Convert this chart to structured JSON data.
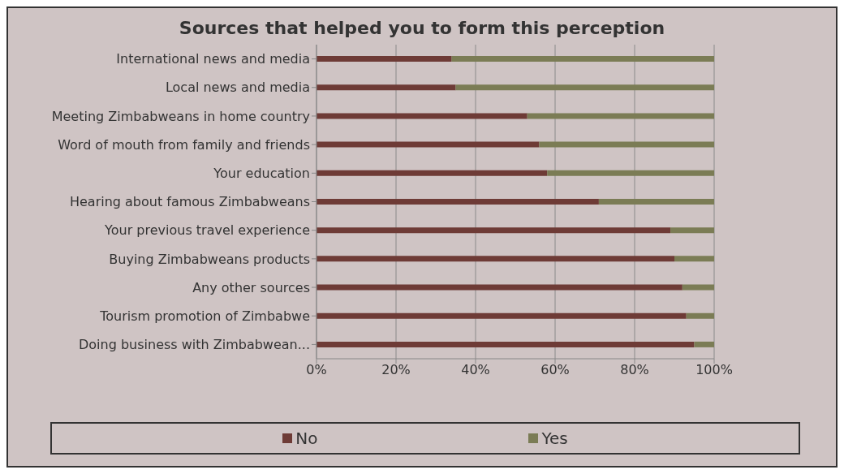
{
  "chart_data": {
    "type": "bar",
    "orientation": "horizontal",
    "stacked": true,
    "title": "Sources that helped you to form this perception",
    "categories": [
      "International news and media",
      "Local news and media",
      "Meeting Zimbabweans in home country",
      "Word of mouth from family and friends",
      "Your education",
      "Hearing about famous Zimbabweans",
      "Your previous travel experience",
      "Buying Zimbabweans products",
      "Any other sources",
      "Tourism promotion of Zimbabwe",
      "Doing business with Zimbabwean..."
    ],
    "series": [
      {
        "name": "No",
        "color": "#6e3b36",
        "values": [
          34,
          35,
          53,
          56,
          58,
          71,
          89,
          90,
          92,
          93,
          95
        ]
      },
      {
        "name": "Yes",
        "color": "#7b7c55",
        "values": [
          66,
          65,
          47,
          44,
          42,
          29,
          11,
          10,
          8,
          7,
          5
        ]
      }
    ],
    "xlim": [
      0,
      100
    ],
    "xticks": [
      {
        "value": 0,
        "label": "0%"
      },
      {
        "value": 20,
        "label": "20%"
      },
      {
        "value": 40,
        "label": "40%"
      },
      {
        "value": 60,
        "label": "60%"
      },
      {
        "value": 80,
        "label": "80%"
      },
      {
        "value": 100,
        "label": "100%"
      }
    ],
    "grid": "x",
    "legend": "bottom"
  }
}
